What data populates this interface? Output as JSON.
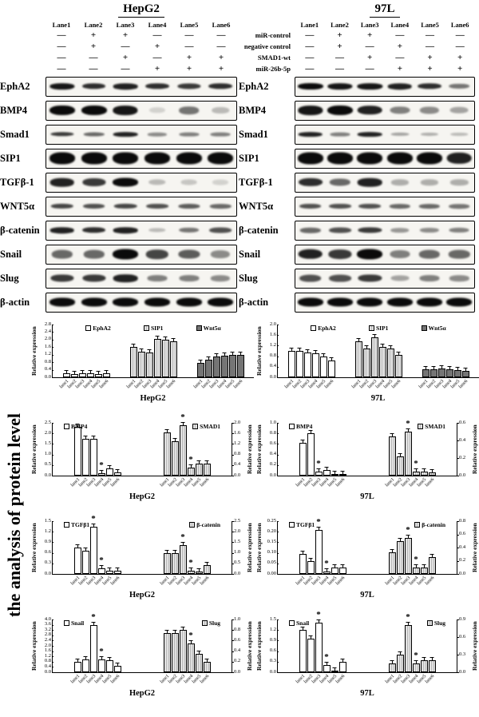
{
  "figure": {
    "panels": [
      {
        "title": "HepG2"
      },
      {
        "title": "97L"
      }
    ],
    "lane_headers": [
      "Lane1",
      "Lane2",
      "Lane3",
      "Lane4",
      "Lane5",
      "Lane6"
    ],
    "treatments": [
      {
        "label": "miR-control",
        "left": [
          "—",
          "+",
          "+",
          "—",
          "—",
          "—"
        ],
        "right": [
          "—",
          "+",
          "+",
          "—",
          "—",
          "—"
        ]
      },
      {
        "label": "negative control",
        "left": [
          "—",
          "+",
          "—",
          "+",
          "—",
          "—"
        ],
        "right": [
          "—",
          "+",
          "—",
          "+",
          "—",
          "—"
        ]
      },
      {
        "label": "SMAD1-wt",
        "left": [
          "—",
          "—",
          "+",
          "—",
          "+",
          "+"
        ],
        "right": [
          "—",
          "—",
          "+",
          "—",
          "+",
          "+"
        ]
      },
      {
        "label": "miR-26b-5p",
        "left": [
          "—",
          "—",
          "—",
          "+",
          "+",
          "+"
        ],
        "right": [
          "—",
          "—",
          "—",
          "+",
          "+",
          "+"
        ]
      }
    ],
    "blot_rows": [
      {
        "label": "EphA2",
        "bh": 8,
        "left": [
          0.95,
          0.85,
          0.9,
          0.85,
          0.8,
          0.85
        ],
        "right": [
          1,
          0.95,
          0.95,
          0.9,
          0.85,
          0.55
        ]
      },
      {
        "label": "BMP4",
        "bh": 12,
        "left": [
          1,
          1,
          0.95,
          0.15,
          0.55,
          0.25
        ],
        "right": [
          0.95,
          1,
          0.9,
          0.5,
          0.45,
          0.35
        ]
      },
      {
        "label": "Smad1",
        "bh": 6,
        "left": [
          0.8,
          0.6,
          0.9,
          0.45,
          0.5,
          0.5
        ],
        "right": [
          0.9,
          0.5,
          0.9,
          0.35,
          0.3,
          0.25
        ]
      },
      {
        "label": "SIP1",
        "bh": 15,
        "left": [
          1,
          1,
          1,
          1,
          1,
          1
        ],
        "right": [
          1,
          1,
          1,
          1,
          1,
          0.9
        ]
      },
      {
        "label": "TGFβ-1",
        "bh": 11,
        "left": [
          0.9,
          0.8,
          1,
          0.25,
          0.2,
          0.15
        ],
        "right": [
          0.85,
          0.6,
          0.9,
          0.3,
          0.3,
          0.3
        ]
      },
      {
        "label": "WNT5α",
        "bh": 7,
        "left": [
          0.75,
          0.7,
          0.75,
          0.7,
          0.65,
          0.6
        ],
        "right": [
          0.7,
          0.7,
          0.7,
          0.6,
          0.6,
          0.55
        ]
      },
      {
        "label": "β-catenin",
        "bh": 8,
        "left": [
          0.9,
          0.85,
          0.9,
          0.25,
          0.55,
          0.7
        ],
        "right": [
          0.6,
          0.7,
          0.8,
          0.4,
          0.45,
          0.5
        ]
      },
      {
        "label": "Snail",
        "bh": 13,
        "left": [
          0.6,
          0.6,
          1,
          0.75,
          0.65,
          0.45
        ],
        "right": [
          0.9,
          0.8,
          1,
          0.5,
          0.6,
          0.6
        ]
      },
      {
        "label": "Slug",
        "bh": 10,
        "left": [
          0.8,
          0.8,
          0.9,
          0.5,
          0.5,
          0.45
        ],
        "right": [
          0.7,
          0.7,
          0.8,
          0.35,
          0.5,
          0.45
        ]
      },
      {
        "label": "β-actin",
        "bh": 11,
        "left": [
          1,
          1,
          1,
          1,
          1,
          1
        ],
        "right": [
          1,
          1,
          1,
          1,
          1,
          1
        ]
      }
    ]
  },
  "analysis_title": "the analysis of protein level",
  "chart_data": [
    {
      "id": "hepg2-markers",
      "type": "bar",
      "xlabel": "HepG2",
      "legend_position": "top",
      "categories": [
        "lane1",
        "lane2",
        "lane3",
        "lane4",
        "lane5",
        "lane6"
      ],
      "left_axis": {
        "label": "Relative expression",
        "max": 2.8,
        "ticks": [
          "0.0",
          "0.4",
          "0.8",
          "1.2",
          "1.6",
          "2.0",
          "2.4",
          "2.8"
        ]
      },
      "right_axis": null,
      "series": [
        {
          "name": "EphA2",
          "color": "white",
          "axis": "left",
          "values": [
            0.22,
            0.18,
            0.22,
            0.2,
            0.16,
            0.2
          ],
          "sig": [
            0,
            0,
            0,
            0,
            0,
            0
          ]
        },
        {
          "name": "SIP1",
          "color": "hatch",
          "axis": "left",
          "values": [
            1.6,
            1.35,
            1.3,
            2.05,
            2.0,
            1.9
          ],
          "sig": [
            0,
            0,
            0,
            0,
            0,
            0
          ]
        },
        {
          "name": "Wnt5α",
          "color": "dark",
          "axis": "left",
          "values": [
            0.75,
            0.95,
            1.1,
            1.15,
            1.2,
            1.2
          ],
          "sig": [
            0,
            0,
            0,
            0,
            0,
            0
          ]
        }
      ]
    },
    {
      "id": "97l-markers",
      "type": "bar",
      "xlabel": "97L",
      "legend_position": "top",
      "categories": [
        "lane1",
        "lane2",
        "lane3",
        "lane4",
        "lane5",
        "lane6"
      ],
      "left_axis": {
        "label": "Relative expression",
        "max": 2.0,
        "ticks": [
          "0.0",
          "0.4",
          "0.8",
          "1.2",
          "1.6",
          "2.0"
        ]
      },
      "right_axis": null,
      "series": [
        {
          "name": "EphA2",
          "color": "white",
          "axis": "left",
          "values": [
            1.0,
            1.0,
            0.95,
            0.9,
            0.78,
            0.65
          ],
          "sig": [
            0,
            0,
            0,
            0,
            0,
            0
          ]
        },
        {
          "name": "SIP1",
          "color": "hatch",
          "axis": "left",
          "values": [
            1.35,
            1.1,
            1.52,
            1.15,
            1.1,
            0.85
          ],
          "sig": [
            0,
            0,
            0,
            0,
            0,
            0
          ]
        },
        {
          "name": "Wnt5α",
          "color": "dark",
          "axis": "left",
          "values": [
            0.3,
            0.3,
            0.33,
            0.3,
            0.26,
            0.25
          ],
          "sig": [
            0,
            0,
            0,
            0,
            0,
            0
          ]
        }
      ]
    },
    {
      "id": "hepg2-bmp4-smad1",
      "type": "bar",
      "xlabel": "HepG2",
      "legend_position": "top",
      "categories": [
        "lane1",
        "lane2",
        "lane3",
        "lane4",
        "lane5",
        "lane6"
      ],
      "left_axis": {
        "label": "Relative expression",
        "max": 2.5,
        "ticks": [
          "0.0",
          "0.5",
          "1.0",
          "1.5",
          "2.0",
          "2.5"
        ]
      },
      "right_axis": {
        "label": "Relative expression",
        "max": 2.0,
        "ticks": [
          "0.0",
          "0.4",
          "0.8",
          "1.2",
          "1.6",
          "2.0"
        ]
      },
      "series": [
        {
          "name": "BMP4",
          "color": "white",
          "axis": "left",
          "values": [
            2.3,
            1.75,
            1.75,
            0.1,
            0.35,
            0.15
          ],
          "sig": [
            0,
            0,
            0,
            1,
            0,
            0
          ]
        },
        {
          "name": "SMAD1",
          "color": "hatch",
          "axis": "right",
          "values": [
            1.65,
            1.3,
            1.9,
            0.3,
            0.45,
            0.45
          ],
          "sig": [
            0,
            0,
            1,
            1,
            0,
            0
          ]
        }
      ]
    },
    {
      "id": "97l-bmp4-smad1",
      "type": "bar",
      "xlabel": "97L",
      "legend_position": "top",
      "categories": [
        "lane1",
        "lane2",
        "lane3",
        "lane4",
        "lane5",
        "lane6"
      ],
      "left_axis": {
        "label": "Relative expression",
        "max": 1.0,
        "ticks": [
          "0.0",
          "0.2",
          "0.4",
          "0.6",
          "0.8",
          "1.0"
        ]
      },
      "right_axis": {
        "label": "Relative expression",
        "max": 0.6,
        "ticks": [
          "0.0",
          "0.2",
          "0.4",
          "0.6"
        ]
      },
      "series": [
        {
          "name": "BMP4",
          "color": "white",
          "axis": "left",
          "values": [
            0.62,
            0.8,
            0.08,
            0.1,
            0.03,
            0.03
          ],
          "sig": [
            0,
            0,
            1,
            0,
            0,
            0
          ]
        },
        {
          "name": "SMAD1",
          "color": "hatch",
          "axis": "right",
          "values": [
            0.45,
            0.22,
            0.5,
            0.05,
            0.05,
            0.04
          ],
          "sig": [
            0,
            0,
            1,
            1,
            0,
            0
          ]
        }
      ]
    },
    {
      "id": "hepg2-tgfb1-bcatenin",
      "type": "bar",
      "xlabel": "HepG2",
      "legend_position": "top",
      "categories": [
        "lane1",
        "lane2",
        "lane3",
        "lane4",
        "lane5",
        "lane6"
      ],
      "left_axis": {
        "label": "Relative expression",
        "max": 1.5,
        "ticks": [
          "0.0",
          "0.3",
          "0.6",
          "0.9",
          "1.2",
          "1.5"
        ]
      },
      "right_axis": {
        "label": "Relative expression",
        "max": 2.5,
        "ticks": [
          "0.0",
          "0.5",
          "1.0",
          "1.5",
          "2.0",
          "2.5"
        ]
      },
      "series": [
        {
          "name": "TGFβ1",
          "color": "white",
          "axis": "left",
          "values": [
            0.75,
            0.65,
            1.35,
            0.15,
            0.1,
            0.08
          ],
          "sig": [
            0,
            0,
            1,
            1,
            0,
            0
          ]
        },
        {
          "name": "β-catenin",
          "color": "hatch",
          "axis": "right",
          "values": [
            1.0,
            1.0,
            1.35,
            0.15,
            0.1,
            0.4
          ],
          "sig": [
            0,
            0,
            1,
            1,
            0,
            0
          ]
        }
      ]
    },
    {
      "id": "97l-tgfb1-bcatenin",
      "type": "bar",
      "xlabel": "97L",
      "legend_position": "top",
      "categories": [
        "lane1",
        "lane2",
        "lane3",
        "lane4",
        "lane5",
        "lane6"
      ],
      "left_axis": {
        "label": "Relative expression",
        "max": 0.25,
        "ticks": [
          "0.00",
          "0.05",
          "0.10",
          "0.15",
          "0.20",
          "0.25"
        ]
      },
      "right_axis": {
        "label": "Relative expression",
        "max": 0.8,
        "ticks": [
          "0.0",
          "0.2",
          "0.4",
          "0.6",
          "0.8"
        ]
      },
      "series": [
        {
          "name": "TGFβ1",
          "color": "white",
          "axis": "left",
          "values": [
            0.095,
            0.06,
            0.21,
            0.01,
            0.03,
            0.03
          ],
          "sig": [
            0,
            0,
            1,
            1,
            0,
            0
          ]
        },
        {
          "name": "β-catenin",
          "color": "hatch",
          "axis": "right",
          "values": [
            0.33,
            0.5,
            0.55,
            0.1,
            0.1,
            0.25
          ],
          "sig": [
            0,
            0,
            1,
            1,
            0,
            0
          ]
        }
      ]
    },
    {
      "id": "hepg2-snail-slug",
      "type": "bar",
      "xlabel": "HepG2",
      "legend_position": "top",
      "categories": [
        "lane1",
        "lane2",
        "lane3",
        "lane4",
        "lane5",
        "lane6"
      ],
      "left_axis": {
        "label": "Relative expression",
        "max": 4.0,
        "ticks": [
          "0.0",
          "0.4",
          "0.8",
          "1.2",
          "1.6",
          "2.0",
          "2.4",
          "2.8",
          "3.2",
          "3.6",
          "4.0"
        ]
      },
      "right_axis": {
        "label": "Relative expression",
        "max": 1.0,
        "ticks": [
          "0.0",
          "0.2",
          "0.4",
          "0.6",
          "0.8",
          "1.0"
        ]
      },
      "series": [
        {
          "name": "Snail",
          "color": "white",
          "axis": "left",
          "values": [
            0.8,
            1.0,
            3.6,
            1.0,
            0.9,
            0.5
          ],
          "sig": [
            0,
            0,
            1,
            1,
            0,
            0
          ]
        },
        {
          "name": "Slug",
          "color": "hatch",
          "axis": "right",
          "values": [
            0.75,
            0.75,
            0.8,
            0.55,
            0.35,
            0.2
          ],
          "sig": [
            0,
            0,
            0,
            1,
            0,
            0
          ]
        }
      ]
    },
    {
      "id": "97l-snail-slug",
      "type": "bar",
      "xlabel": "97L",
      "legend_position": "top",
      "categories": [
        "lane1",
        "lane2",
        "lane3",
        "lane4",
        "lane5",
        "lane6"
      ],
      "left_axis": {
        "label": "Relative expression",
        "max": 1.5,
        "ticks": [
          "0.0",
          "0.3",
          "0.6",
          "0.9",
          "1.2",
          "1.5"
        ]
      },
      "right_axis": {
        "label": "Relative expression",
        "max": 0.9,
        "ticks": [
          "0.0",
          "0.3",
          "0.6",
          "0.9"
        ]
      },
      "series": [
        {
          "name": "Snail",
          "color": "white",
          "axis": "left",
          "values": [
            1.2,
            0.95,
            1.4,
            0.2,
            0.05,
            0.3
          ],
          "sig": [
            0,
            0,
            1,
            1,
            0,
            0
          ]
        },
        {
          "name": "Slug",
          "color": "hatch",
          "axis": "right",
          "values": [
            0.15,
            0.3,
            0.8,
            0.15,
            0.2,
            0.2
          ],
          "sig": [
            0,
            0,
            1,
            1,
            0,
            0
          ]
        }
      ]
    }
  ]
}
